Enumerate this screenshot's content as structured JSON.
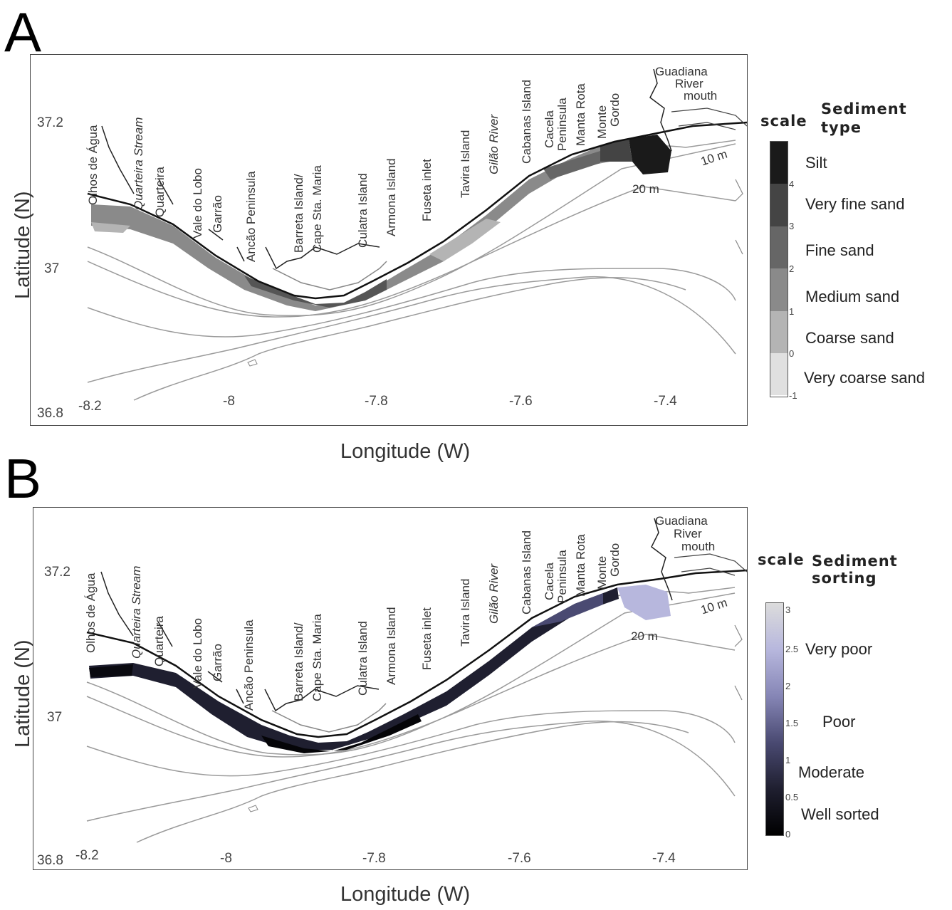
{
  "panels": [
    {
      "letter": "A",
      "x_ticks": [
        "-8.2",
        "-8",
        "-7.8",
        "-7.6",
        "-7.4"
      ],
      "y_ticks": [
        "37.2",
        "37",
        "36.8"
      ],
      "x_title": "Longitude (W)",
      "y_title": "Latitude (N)",
      "legend": {
        "scale_word": "scale",
        "title_lines": [
          "Sediment",
          "type"
        ],
        "classes": [
          "Silt",
          "Very fine sand",
          "Fine sand",
          "Medium sand",
          "Coarse sand",
          "Very coarse sand"
        ],
        "ticks": [
          "4",
          "3",
          "2",
          "1",
          "0",
          "-1"
        ],
        "colors": [
          "#1a1a1a",
          "#444444",
          "#666666",
          "#8a8a8a",
          "#b4b4b4",
          "#e0e0e0"
        ]
      }
    },
    {
      "letter": "B",
      "x_ticks": [
        "-8.2",
        "-8",
        "-7.8",
        "-7.6",
        "-7.4"
      ],
      "y_ticks": [
        "37.2",
        "37",
        "36.8"
      ],
      "x_title": "Longitude (W)",
      "y_title": "Latitude (N)",
      "legend": {
        "scale_word": "scale",
        "title_lines": [
          "Sediment",
          "sorting"
        ],
        "classes": [
          "Very poor",
          "Poor",
          "Moderate",
          "Well sorted"
        ],
        "ticks": [
          "3",
          "2.5",
          "2",
          "1.5",
          "1",
          "0.5",
          "0"
        ],
        "colors": [
          "#dcdcdc",
          "#b7b7dd",
          "#8686b6",
          "#4a4a72",
          "#1f1f30",
          "#000000"
        ]
      }
    }
  ],
  "places": {
    "olhos": "Olhos de Água",
    "quarteira_stream": "Quarteira Stream",
    "quarteira": "Quarteira",
    "vale_do_lobo": "Vale do Lobo",
    "garrao": "Garrão",
    "ancao": "Ancão Peninsula",
    "barreta": "Barreta Island/",
    "cape": "Cape Sta. Maria",
    "culatra": "Culatra Island",
    "armona": "Armona Island",
    "fuseta": "Fuseta inlet",
    "tavira": "Tavira Island",
    "gilao": "Gilão River",
    "cabanas": "Cabanas Island",
    "cacela": "Cacela",
    "peninsula": "Peninsula",
    "manta_rota": "Manta Rota",
    "monte": "Monte",
    "gordo": "Gordo",
    "guadiana": "Guadiana",
    "river": "River",
    "mouth": "mouth"
  },
  "depths": {
    "d10": "10 m",
    "d20": "20 m"
  }
}
